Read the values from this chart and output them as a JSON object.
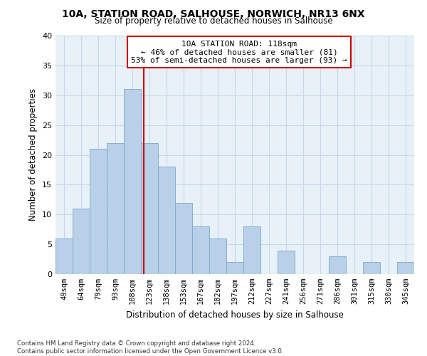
{
  "title1": "10A, STATION ROAD, SALHOUSE, NORWICH, NR13 6NX",
  "title2": "Size of property relative to detached houses in Salhouse",
  "xlabel": "Distribution of detached houses by size in Salhouse",
  "ylabel": "Number of detached properties",
  "bar_labels": [
    "49sqm",
    "64sqm",
    "79sqm",
    "93sqm",
    "108sqm",
    "123sqm",
    "138sqm",
    "153sqm",
    "167sqm",
    "182sqm",
    "197sqm",
    "212sqm",
    "227sqm",
    "241sqm",
    "256sqm",
    "271sqm",
    "286sqm",
    "301sqm",
    "315sqm",
    "330sqm",
    "345sqm"
  ],
  "bar_values": [
    6,
    11,
    21,
    22,
    31,
    22,
    18,
    12,
    8,
    6,
    2,
    8,
    0,
    4,
    0,
    0,
    3,
    0,
    2,
    0,
    2
  ],
  "bar_color": "#b8d0e8",
  "bar_edge_color": "#7aaac8",
  "grid_color": "#c8d8e8",
  "background_color": "#e8f0f8",
  "vline_x": 4.67,
  "vline_color": "#cc0000",
  "annotation_text": "10A STATION ROAD: 118sqm\n← 46% of detached houses are smaller (81)\n53% of semi-detached houses are larger (93) →",
  "annotation_box_color": "#ffffff",
  "annotation_box_edgecolor": "#cc0000",
  "footnote": "Contains HM Land Registry data © Crown copyright and database right 2024.\nContains public sector information licensed under the Open Government Licence v3.0.",
  "ylim": [
    0,
    40
  ],
  "yticks": [
    0,
    5,
    10,
    15,
    20,
    25,
    30,
    35,
    40
  ]
}
